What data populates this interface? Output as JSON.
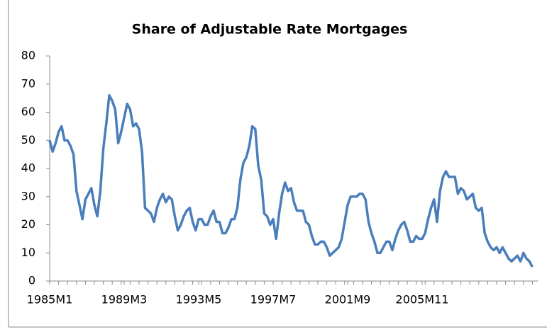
{
  "chart_data": {
    "type": "line",
    "title": "Share of Adjustable Rate Mortgages",
    "categories": [
      "1985M1",
      null,
      null,
      null,
      null,
      null,
      null,
      null,
      null,
      null,
      null,
      null,
      null,
      null,
      null,
      null,
      null,
      null,
      null,
      null,
      null,
      null,
      null,
      null,
      null,
      "1989M3",
      null,
      null,
      null,
      null,
      null,
      null,
      null,
      null,
      null,
      null,
      null,
      null,
      null,
      null,
      null,
      null,
      null,
      null,
      null,
      null,
      null,
      null,
      null,
      null,
      "1993M5",
      null,
      null,
      null,
      null,
      null,
      null,
      null,
      null,
      null,
      null,
      null,
      null,
      null,
      null,
      null,
      null,
      null,
      null,
      null,
      null,
      null,
      null,
      null,
      null,
      "1997M7",
      null,
      null,
      null,
      null,
      null,
      null,
      null,
      null,
      null,
      null,
      null,
      null,
      null,
      null,
      null,
      null,
      null,
      null,
      null,
      null,
      null,
      null,
      null,
      null,
      "2001M9",
      null,
      null,
      null,
      null,
      null,
      null,
      null,
      null,
      null,
      null,
      null,
      null,
      null,
      null,
      null,
      null,
      null,
      null,
      null,
      null,
      null,
      null,
      null,
      null,
      "2005M11",
      null,
      null,
      null,
      null,
      null,
      null,
      null,
      null,
      null,
      null,
      null,
      null,
      null,
      null,
      null,
      null,
      null,
      null,
      null,
      null,
      null,
      null,
      null,
      null,
      null,
      null,
      null,
      null,
      null,
      null,
      null,
      null,
      null,
      null,
      null,
      null,
      null
    ],
    "values": [
      50,
      46,
      49,
      53,
      55,
      50,
      50,
      48,
      45,
      32,
      27,
      22,
      29,
      31,
      33,
      27,
      23,
      32,
      47,
      56,
      66,
      64,
      61,
      49,
      53,
      58,
      63,
      61,
      55,
      56,
      54,
      46,
      26,
      25,
      24,
      21,
      26,
      29,
      31,
      28,
      30,
      29,
      23,
      18,
      20,
      23,
      25,
      26,
      21,
      18,
      22,
      22,
      20,
      20,
      23,
      25,
      21,
      21,
      17,
      17,
      19,
      22,
      22,
      26,
      36,
      42,
      44,
      48,
      55,
      54,
      41,
      36,
      24,
      23,
      20,
      22,
      15,
      24,
      31,
      35,
      32,
      33,
      28,
      25,
      25,
      25,
      21,
      20,
      16,
      13,
      13,
      14,
      14,
      12,
      9,
      10,
      11,
      12,
      15,
      21,
      27,
      30,
      30,
      30,
      31,
      31,
      29,
      21,
      17,
      14,
      10,
      10,
      12,
      14,
      14,
      11,
      15,
      18,
      20,
      21,
      18,
      14,
      14,
      16,
      15,
      15,
      17,
      22,
      26,
      29,
      21,
      32,
      37,
      39,
      37,
      37,
      37,
      31,
      33,
      32,
      29,
      30,
      31,
      26,
      25,
      26,
      17,
      14,
      12,
      11,
      12,
      10,
      12,
      10,
      8,
      7,
      8,
      9,
      7,
      10,
      8,
      7,
      5
    ],
    "color": "#4a7ebb",
    "ylim": [
      0,
      80
    ],
    "yticks": [
      0,
      10,
      20,
      30,
      40,
      50,
      60,
      70,
      80
    ]
  }
}
